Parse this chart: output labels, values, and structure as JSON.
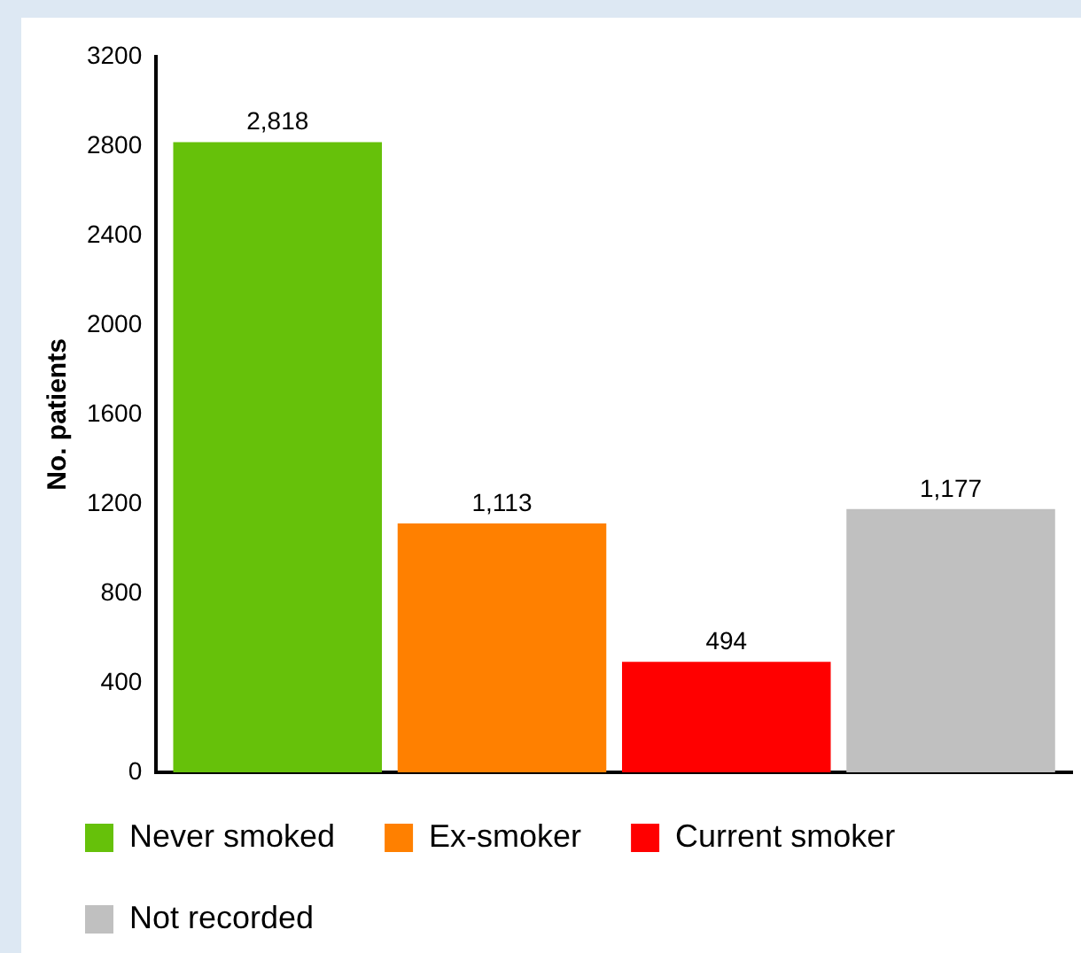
{
  "chart_data": {
    "type": "bar",
    "ylabel": "No. patients",
    "categories": [
      null
    ],
    "series": [
      {
        "name": "Never smoked",
        "color": "#66c10a",
        "values": [
          2818
        ],
        "value_labels": [
          "2,818"
        ]
      },
      {
        "name": "Ex-smoker",
        "color": "#ff8000",
        "values": [
          1113
        ],
        "value_labels": [
          "1,113"
        ]
      },
      {
        "name": "Current smoker",
        "color": "#ff0000",
        "values": [
          494
        ],
        "value_labels": [
          "494"
        ]
      },
      {
        "name": "Not recorded",
        "color": "#c0c0c0",
        "values": [
          1177
        ],
        "value_labels": [
          "1,177"
        ]
      }
    ],
    "ylim": [
      0,
      3200
    ],
    "yticks": [
      0,
      400,
      800,
      1200,
      1600,
      2000,
      2400,
      2800,
      3200
    ],
    "grid": false,
    "legend": "bottom",
    "tick_labels": "y"
  }
}
